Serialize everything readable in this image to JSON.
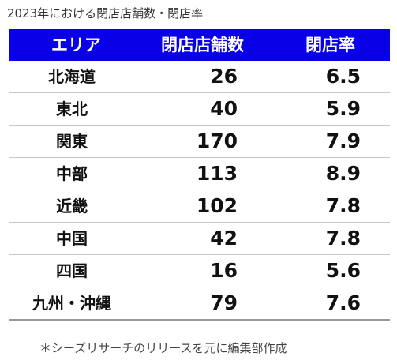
{
  "title": "2023年における閉店店舗数・閉店率",
  "table": {
    "headers": [
      "エリア",
      "閉店店舗数",
      "閉店率"
    ],
    "header_bg": "#0a00e8",
    "header_fg": "#ffffff"
  },
  "chart_data": {
    "type": "table",
    "title": "2023年における閉店店舗数・閉店率",
    "columns": [
      "エリア",
      "閉店店舗数",
      "閉店率"
    ],
    "rows": [
      [
        "北海道",
        "26",
        "6.5"
      ],
      [
        "東北",
        "40",
        "5.9"
      ],
      [
        "関東",
        "170",
        "7.9"
      ],
      [
        "中部",
        "113",
        "8.9"
      ],
      [
        "近畿",
        "102",
        "7.8"
      ],
      [
        "中国",
        "42",
        "7.8"
      ],
      [
        "四国",
        "16",
        "5.6"
      ],
      [
        "九州・沖縄",
        "79",
        "7.6"
      ]
    ]
  },
  "note": "＊シーズリサーチのリリースを元に編集部作成"
}
